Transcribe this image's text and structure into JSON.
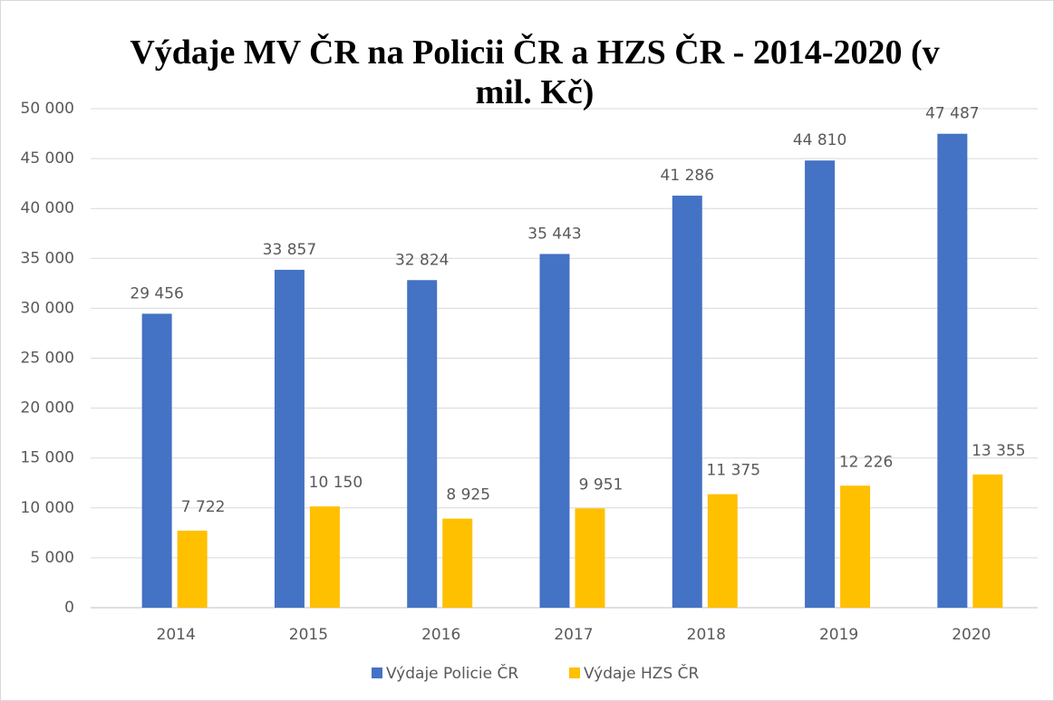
{
  "chart_data": {
    "type": "bar",
    "title": "Výdaje MV ČR na Policii ČR a HZS ČR - 2014-2020 (v mil. Kč)",
    "categories": [
      "2014",
      "2015",
      "2016",
      "2017",
      "2018",
      "2019",
      "2020"
    ],
    "series": [
      {
        "name": "Výdaje Policie ČR",
        "color": "#4472c4",
        "values": [
          29456,
          33857,
          32824,
          35443,
          41286,
          44810,
          47487
        ],
        "value_labels": [
          "29 456",
          "33 857",
          "32 824",
          "35 443",
          "41 286",
          "44 810",
          "47 487"
        ]
      },
      {
        "name": "Výdaje HZS ČR",
        "color": "#ffc000",
        "values": [
          7722,
          10150,
          8925,
          9951,
          11375,
          12226,
          13355
        ],
        "value_labels": [
          "7 722",
          "10 150",
          "8 925",
          "9 951",
          "11 375",
          "12 226",
          "13 355"
        ]
      }
    ],
    "ylim": [
      0,
      50000
    ],
    "yticks": [
      0,
      {
        "value": 5000,
        "label": "5 000"
      },
      {
        "value": 10000,
        "label": "10 000"
      },
      {
        "value": 15000,
        "label": "15 000"
      },
      {
        "value": 20000,
        "label": "20 000"
      },
      {
        "value": 25000,
        "label": "25 000"
      },
      {
        "value": 30000,
        "label": "30 000"
      },
      {
        "value": 35000,
        "label": "35 000"
      },
      {
        "value": 40000,
        "label": "40 000"
      },
      {
        "value": 45000,
        "label": "45 000"
      },
      {
        "value": 50000,
        "label": "50 000"
      }
    ],
    "grid": true,
    "legend": "bottom"
  }
}
